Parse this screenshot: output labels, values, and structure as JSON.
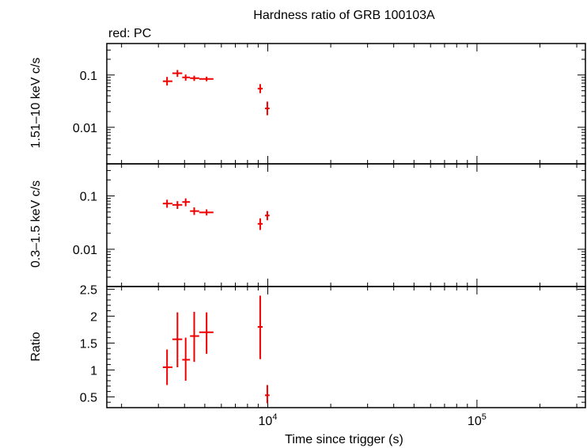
{
  "title": "Hardness ratio of GRB 100103A",
  "legend_note": "red: PC",
  "colors": {
    "data": "#ee0000",
    "axes": "#000000",
    "background": "#ffffff"
  },
  "chart_data": [
    {
      "panel": "hard",
      "type": "scatter",
      "ylabel": "1.51–10 keV c/s",
      "yscale": "log",
      "xscale": "log",
      "ylim": [
        0.002,
        0.4
      ],
      "xlim": [
        1700,
        330000
      ],
      "yticks": [
        {
          "value": 0.1,
          "label": "0.1"
        },
        {
          "value": 0.01,
          "label": "0.01"
        }
      ],
      "series": [
        {
          "color": "#ee0000",
          "points": [
            {
              "x": 3300,
              "xlo": 3150,
              "xhi": 3500,
              "y": 0.076,
              "ylo": 0.063,
              "yhi": 0.092
            },
            {
              "x": 3700,
              "xlo": 3500,
              "xhi": 3900,
              "y": 0.108,
              "ylo": 0.092,
              "yhi": 0.125
            },
            {
              "x": 4050,
              "xlo": 3900,
              "xhi": 4250,
              "y": 0.09,
              "ylo": 0.078,
              "yhi": 0.102
            },
            {
              "x": 4450,
              "xlo": 4250,
              "xhi": 4700,
              "y": 0.087,
              "ylo": 0.077,
              "yhi": 0.097
            },
            {
              "x": 5100,
              "xlo": 4700,
              "xhi": 5500,
              "y": 0.084,
              "ylo": 0.076,
              "yhi": 0.093
            },
            {
              "x": 9200,
              "xlo": 8950,
              "xhi": 9450,
              "y": 0.055,
              "ylo": 0.045,
              "yhi": 0.067
            },
            {
              "x": 9950,
              "xlo": 9700,
              "xhi": 10200,
              "y": 0.023,
              "ylo": 0.017,
              "yhi": 0.031
            }
          ]
        }
      ]
    },
    {
      "panel": "soft",
      "type": "scatter",
      "ylabel": "0.3–1.5 keV c/s",
      "yscale": "log",
      "xscale": "log",
      "ylim": [
        0.002,
        0.4
      ],
      "xlim": [
        1700,
        330000
      ],
      "yticks": [
        {
          "value": 0.1,
          "label": "0.1"
        },
        {
          "value": 0.01,
          "label": "0.01"
        }
      ],
      "series": [
        {
          "color": "#ee0000",
          "points": [
            {
              "x": 3300,
              "xlo": 3150,
              "xhi": 3500,
              "y": 0.072,
              "ylo": 0.06,
              "yhi": 0.085
            },
            {
              "x": 3700,
              "xlo": 3500,
              "xhi": 3900,
              "y": 0.068,
              "ylo": 0.057,
              "yhi": 0.08
            },
            {
              "x": 4050,
              "xlo": 3900,
              "xhi": 4250,
              "y": 0.077,
              "ylo": 0.064,
              "yhi": 0.09
            },
            {
              "x": 4450,
              "xlo": 4250,
              "xhi": 4700,
              "y": 0.052,
              "ylo": 0.044,
              "yhi": 0.061
            },
            {
              "x": 5100,
              "xlo": 4700,
              "xhi": 5500,
              "y": 0.049,
              "ylo": 0.043,
              "yhi": 0.056
            },
            {
              "x": 9200,
              "xlo": 8950,
              "xhi": 9450,
              "y": 0.03,
              "ylo": 0.023,
              "yhi": 0.038
            },
            {
              "x": 9950,
              "xlo": 9700,
              "xhi": 10200,
              "y": 0.043,
              "ylo": 0.035,
              "yhi": 0.052
            }
          ]
        }
      ]
    },
    {
      "panel": "ratio",
      "type": "scatter",
      "ylabel": "Ratio",
      "xlabel": "Time since trigger (s)",
      "yscale": "linear",
      "xscale": "log",
      "ylim": [
        0.3,
        2.55
      ],
      "xlim": [
        1700,
        330000
      ],
      "yticks": [
        {
          "value": 0.5,
          "label": "0.5"
        },
        {
          "value": 1,
          "label": "1"
        },
        {
          "value": 1.5,
          "label": "1.5"
        },
        {
          "value": 2,
          "label": "2"
        },
        {
          "value": 2.5,
          "label": "2.5"
        }
      ],
      "xticks": [
        {
          "value": 10000,
          "label_base": "10",
          "label_exp": "4"
        },
        {
          "value": 100000,
          "label_base": "10",
          "label_exp": "5"
        }
      ],
      "series": [
        {
          "color": "#ee0000",
          "points": [
            {
              "x": 3300,
              "xlo": 3150,
              "xhi": 3500,
              "y": 1.05,
              "ylo": 0.72,
              "yhi": 1.38
            },
            {
              "x": 3700,
              "xlo": 3500,
              "xhi": 3900,
              "y": 1.57,
              "ylo": 1.05,
              "yhi": 2.07
            },
            {
              "x": 4050,
              "xlo": 3900,
              "xhi": 4250,
              "y": 1.19,
              "ylo": 0.8,
              "yhi": 1.6
            },
            {
              "x": 4450,
              "xlo": 4250,
              "xhi": 4700,
              "y": 1.63,
              "ylo": 1.15,
              "yhi": 2.08
            },
            {
              "x": 5100,
              "xlo": 4700,
              "xhi": 5500,
              "y": 1.7,
              "ylo": 1.3,
              "yhi": 2.07
            },
            {
              "x": 9200,
              "xlo": 8950,
              "xhi": 9450,
              "y": 1.8,
              "ylo": 1.2,
              "yhi": 2.38
            },
            {
              "x": 9950,
              "xlo": 9700,
              "xhi": 10200,
              "y": 0.53,
              "ylo": 0.38,
              "yhi": 0.72
            }
          ]
        }
      ]
    }
  ]
}
